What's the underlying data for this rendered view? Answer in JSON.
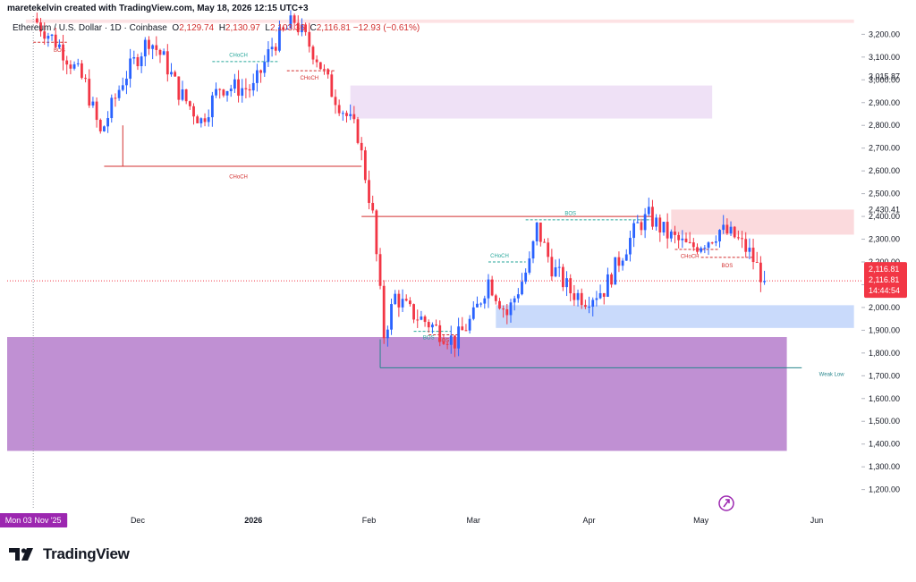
{
  "header": {
    "created_by": "maretekelvin created with TradingView.com, May 18, 2026 12:15 UTC+3"
  },
  "symbol": {
    "name": "Ethereum / U.S. Dollar · 1D · Coinbase",
    "o_label": "O",
    "o_value": "2,129.74",
    "h_label": "H",
    "h_value": "2,130.97",
    "l_label": "L",
    "l_value": "2,103.36",
    "c_label": "C",
    "c_value": "2,116.81",
    "change": "−12.93 (−0.61%)"
  },
  "brand": {
    "name": "TradingView"
  },
  "chart_data": {
    "type": "candlestick",
    "x_axis": {
      "date_range": [
        "2025-10-27",
        "2026-06-13"
      ],
      "tick_labels": [
        {
          "date": "2025-12-01",
          "label": "Dec"
        },
        {
          "date": "2026-01-01",
          "label": "2026"
        },
        {
          "date": "2026-02-01",
          "label": "Feb"
        },
        {
          "date": "2026-03-01",
          "label": "Mar"
        },
        {
          "date": "2026-04-01",
          "label": "Apr"
        },
        {
          "date": "2026-05-01",
          "label": "May"
        },
        {
          "date": "2026-06-01",
          "label": "Jun"
        }
      ],
      "crosshair_label": {
        "date": "2025-11-03",
        "label": "Mon 03 Nov '25"
      }
    },
    "y_axis": {
      "ylim": [
        1120,
        3280
      ],
      "ticks": [
        1200,
        1300,
        1400,
        1500,
        1600,
        1700,
        1800,
        1900,
        2000,
        2100,
        2200,
        2300,
        2400,
        2500,
        2600,
        2700,
        2800,
        2900,
        3000,
        3100,
        3200
      ],
      "tick_labels": [
        "1,200.00",
        "1,300.00",
        "1,400.00",
        "1,500.00",
        "1,600.00",
        "1,700.00",
        "1,800.00",
        "1,900.00",
        "2,000.00",
        "2,100.00",
        "2,200.00",
        "2,300.00",
        "2,400.00",
        "2,500.00",
        "2,600.00",
        "2,700.00",
        "2,800.00",
        "2,900.00",
        "3,000.00",
        "3,100.00",
        "3,200.00"
      ],
      "level_labels": [
        {
          "value": 3015.87,
          "label": "3,015.87"
        },
        {
          "value": 2430.41,
          "label": "2,430.41"
        }
      ],
      "last_price": {
        "value": 2116.81,
        "label": "2,116.81",
        "countdown": "14:44:54"
      }
    },
    "candle_colors": {
      "up": "#2962ff",
      "down": "#f23645"
    },
    "price_path": [
      [
        "2025-11-03",
        3270
      ],
      [
        "2025-11-10",
        3150
      ],
      [
        "2025-11-17",
        2980
      ],
      [
        "2025-11-21",
        2760
      ],
      [
        "2025-11-27",
        3000
      ],
      [
        "2025-12-04",
        3180
      ],
      [
        "2025-12-08",
        3090
      ],
      [
        "2025-12-12",
        2950
      ],
      [
        "2025-12-18",
        2820
      ],
      [
        "2025-12-23",
        2970
      ],
      [
        "2026-01-01",
        2960
      ],
      [
        "2026-01-06",
        3150
      ],
      [
        "2026-01-12",
        3260
      ],
      [
        "2026-01-18",
        3100
      ],
      [
        "2026-01-22",
        2950
      ],
      [
        "2026-01-29",
        2760
      ],
      [
        "2026-02-02",
        2400
      ],
      [
        "2026-02-05",
        1880
      ],
      [
        "2026-02-08",
        2050
      ],
      [
        "2026-02-12",
        1980
      ],
      [
        "2026-02-17",
        1930
      ],
      [
        "2026-02-24",
        1850
      ],
      [
        "2026-03-01",
        1960
      ],
      [
        "2026-03-05",
        2120
      ],
      [
        "2026-03-10",
        1970
      ],
      [
        "2026-03-16",
        2190
      ],
      [
        "2026-03-18",
        2350
      ],
      [
        "2026-03-22",
        2180
      ],
      [
        "2026-03-27",
        2070
      ],
      [
        "2026-03-31",
        2040
      ],
      [
        "2026-04-05",
        2080
      ],
      [
        "2026-04-10",
        2240
      ],
      [
        "2026-04-14",
        2360
      ],
      [
        "2026-04-17",
        2400
      ],
      [
        "2026-04-22",
        2320
      ],
      [
        "2026-04-28",
        2260
      ],
      [
        "2026-05-03",
        2300
      ],
      [
        "2026-05-06",
        2340
      ],
      [
        "2026-05-10",
        2310
      ],
      [
        "2026-05-14",
        2240
      ],
      [
        "2026-05-18",
        2116.81
      ]
    ],
    "zones": [
      {
        "from": "2025-11-01",
        "to": "2026-06-11",
        "top": 3265,
        "bottom": 3250,
        "color": "#fde2e4"
      },
      {
        "from": "2026-01-27",
        "to": "2026-05-04",
        "top": 2975,
        "bottom": 2830,
        "color": "#efe1f6"
      },
      {
        "from": "2026-04-23",
        "to": "2026-06-11",
        "top": 2430,
        "bottom": 2320,
        "color": "#fbdadd"
      },
      {
        "from": "2026-03-07",
        "to": "2026-06-11",
        "top": 2010,
        "bottom": 1910,
        "color": "#c9dafb"
      },
      {
        "from": "2025-10-27",
        "to": "2026-05-24",
        "top": 1870,
        "bottom": 1370,
        "color": "#c090d3"
      }
    ],
    "structure_lines": [
      {
        "from": "2025-11-22",
        "to": "2026-01-30",
        "value": 2620,
        "color": "#d32f2f",
        "style": "solid",
        "label": "CHoCH",
        "label_date": "2025-12-28",
        "label_value": 2575
      },
      {
        "from": "2025-11-27",
        "to": "2025-11-27",
        "value_from": 2620,
        "value_to": 2800,
        "color": "#d32f2f",
        "style": "solid",
        "label": "",
        "label_date": "2025-11-27",
        "label_value": 2620
      },
      {
        "from": "2026-01-30",
        "to": "2026-04-18",
        "value": 2400,
        "color": "#d32f2f",
        "style": "solid",
        "label": "",
        "label_date": "2026-01-30",
        "label_value": 2400
      },
      {
        "from": "2026-02-04",
        "to": "2026-05-28",
        "value": 1735,
        "color": "#26868c",
        "style": "solid",
        "label": "Weak Low",
        "label_date": "2026-06-05",
        "label_value": 1708
      },
      {
        "from": "2026-02-04",
        "to": "2026-02-04",
        "value_from": 1735,
        "value_to": 1860,
        "color": "#26868c",
        "style": "solid",
        "label": "",
        "label_date": "2026-02-04",
        "label_value": 1735
      },
      {
        "from": "2026-03-15",
        "to": "2026-04-18",
        "value": 2385,
        "color": "#26a69a",
        "style": "dashed",
        "label": "BOS",
        "label_date": "2026-03-27",
        "label_value": 2415
      },
      {
        "from": "2026-03-05",
        "to": "2026-03-15",
        "value": 2200,
        "color": "#26a69a",
        "style": "dashed",
        "label": "CHoCH",
        "label_date": "2026-03-08",
        "label_value": 2228
      },
      {
        "from": "2025-12-21",
        "to": "2026-01-08",
        "value": 3080,
        "color": "#26a69a",
        "style": "dashed",
        "label": "CHoCH",
        "label_date": "2025-12-28",
        "label_value": 3110
      },
      {
        "from": "2026-01-10",
        "to": "2026-01-23",
        "value": 3040,
        "color": "#d32f2f",
        "style": "dashed",
        "label": "CHoCH",
        "label_date": "2026-01-16",
        "label_value": 3010
      },
      {
        "from": "2025-11-03",
        "to": "2025-11-12",
        "value": 3165,
        "color": "#d32f2f",
        "style": "dashed",
        "label": "BOS",
        "label_date": "2025-11-10",
        "label_value": 3130
      },
      {
        "from": "2026-04-24",
        "to": "2026-05-06",
        "value": 2255,
        "color": "#d32f2f",
        "style": "dashed",
        "label": "CHoCH",
        "label_date": "2026-04-28",
        "label_value": 2225
      },
      {
        "from": "2026-05-01",
        "to": "2026-05-15",
        "value": 2220,
        "color": "#d32f2f",
        "style": "dashed",
        "label": "BOS",
        "label_date": "2026-05-08",
        "label_value": 2185
      },
      {
        "from": "2026-02-13",
        "to": "2026-02-23",
        "value": 1895,
        "color": "#26a69a",
        "style": "dashed",
        "label": "BOS",
        "label_date": "2026-02-17",
        "label_value": 1868
      },
      {
        "from": "2026-02-17",
        "to": "2026-02-25",
        "value": 1880,
        "color": "#d32f2f",
        "style": "dashed",
        "label": "BOS",
        "label_date": "2026-02-21",
        "label_value": 1856
      }
    ],
    "grid": false
  }
}
